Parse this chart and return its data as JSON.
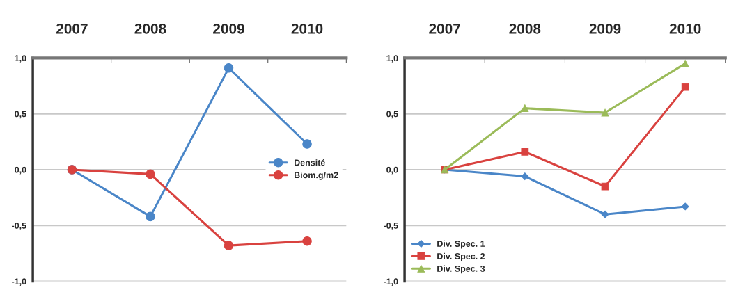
{
  "chart_data": [
    {
      "type": "line",
      "categories": [
        "2007",
        "2008",
        "2009",
        "2010"
      ],
      "ylim": [
        -1.0,
        1.0
      ],
      "yticks": [
        {
          "value": -1.0,
          "label": "-1,0"
        },
        {
          "value": -0.5,
          "label": "-0,5"
        },
        {
          "value": 0.0,
          "label": "0,0"
        },
        {
          "value": 0.5,
          "label": "0,5"
        },
        {
          "value": 1.0,
          "label": "1,0"
        }
      ],
      "grid": "y",
      "legend": "right",
      "series": [
        {
          "name": "Densité",
          "color": "#4a86c8",
          "marker": "circle",
          "values": [
            0.0,
            -0.42,
            0.91,
            0.23
          ]
        },
        {
          "name": "Biom.g/m2",
          "color": "#d9423f",
          "marker": "circle",
          "values": [
            0.0,
            -0.04,
            -0.68,
            -0.64
          ]
        }
      ]
    },
    {
      "type": "line",
      "categories": [
        "2007",
        "2008",
        "2009",
        "2010"
      ],
      "ylim": [
        -1.0,
        1.0
      ],
      "yticks": [
        {
          "value": -1.0,
          "label": "-1,0"
        },
        {
          "value": -0.5,
          "label": "-0,5"
        },
        {
          "value": 0.0,
          "label": "0,0"
        },
        {
          "value": 0.5,
          "label": "0,5"
        },
        {
          "value": 1.0,
          "label": "1,0"
        }
      ],
      "grid": "y",
      "legend": "bottom left",
      "series": [
        {
          "name": "Div. Spec. 1",
          "color": "#4a86c8",
          "marker": "diamond",
          "values": [
            0.0,
            -0.06,
            -0.4,
            -0.33
          ]
        },
        {
          "name": "Div. Spec. 2",
          "color": "#d9423f",
          "marker": "square",
          "values": [
            0.0,
            0.16,
            -0.15,
            0.74
          ]
        },
        {
          "name": "Div. Spec. 3",
          "color": "#9bbb59",
          "marker": "triangle",
          "values": [
            0.0,
            0.55,
            0.51,
            0.95
          ]
        }
      ]
    }
  ]
}
